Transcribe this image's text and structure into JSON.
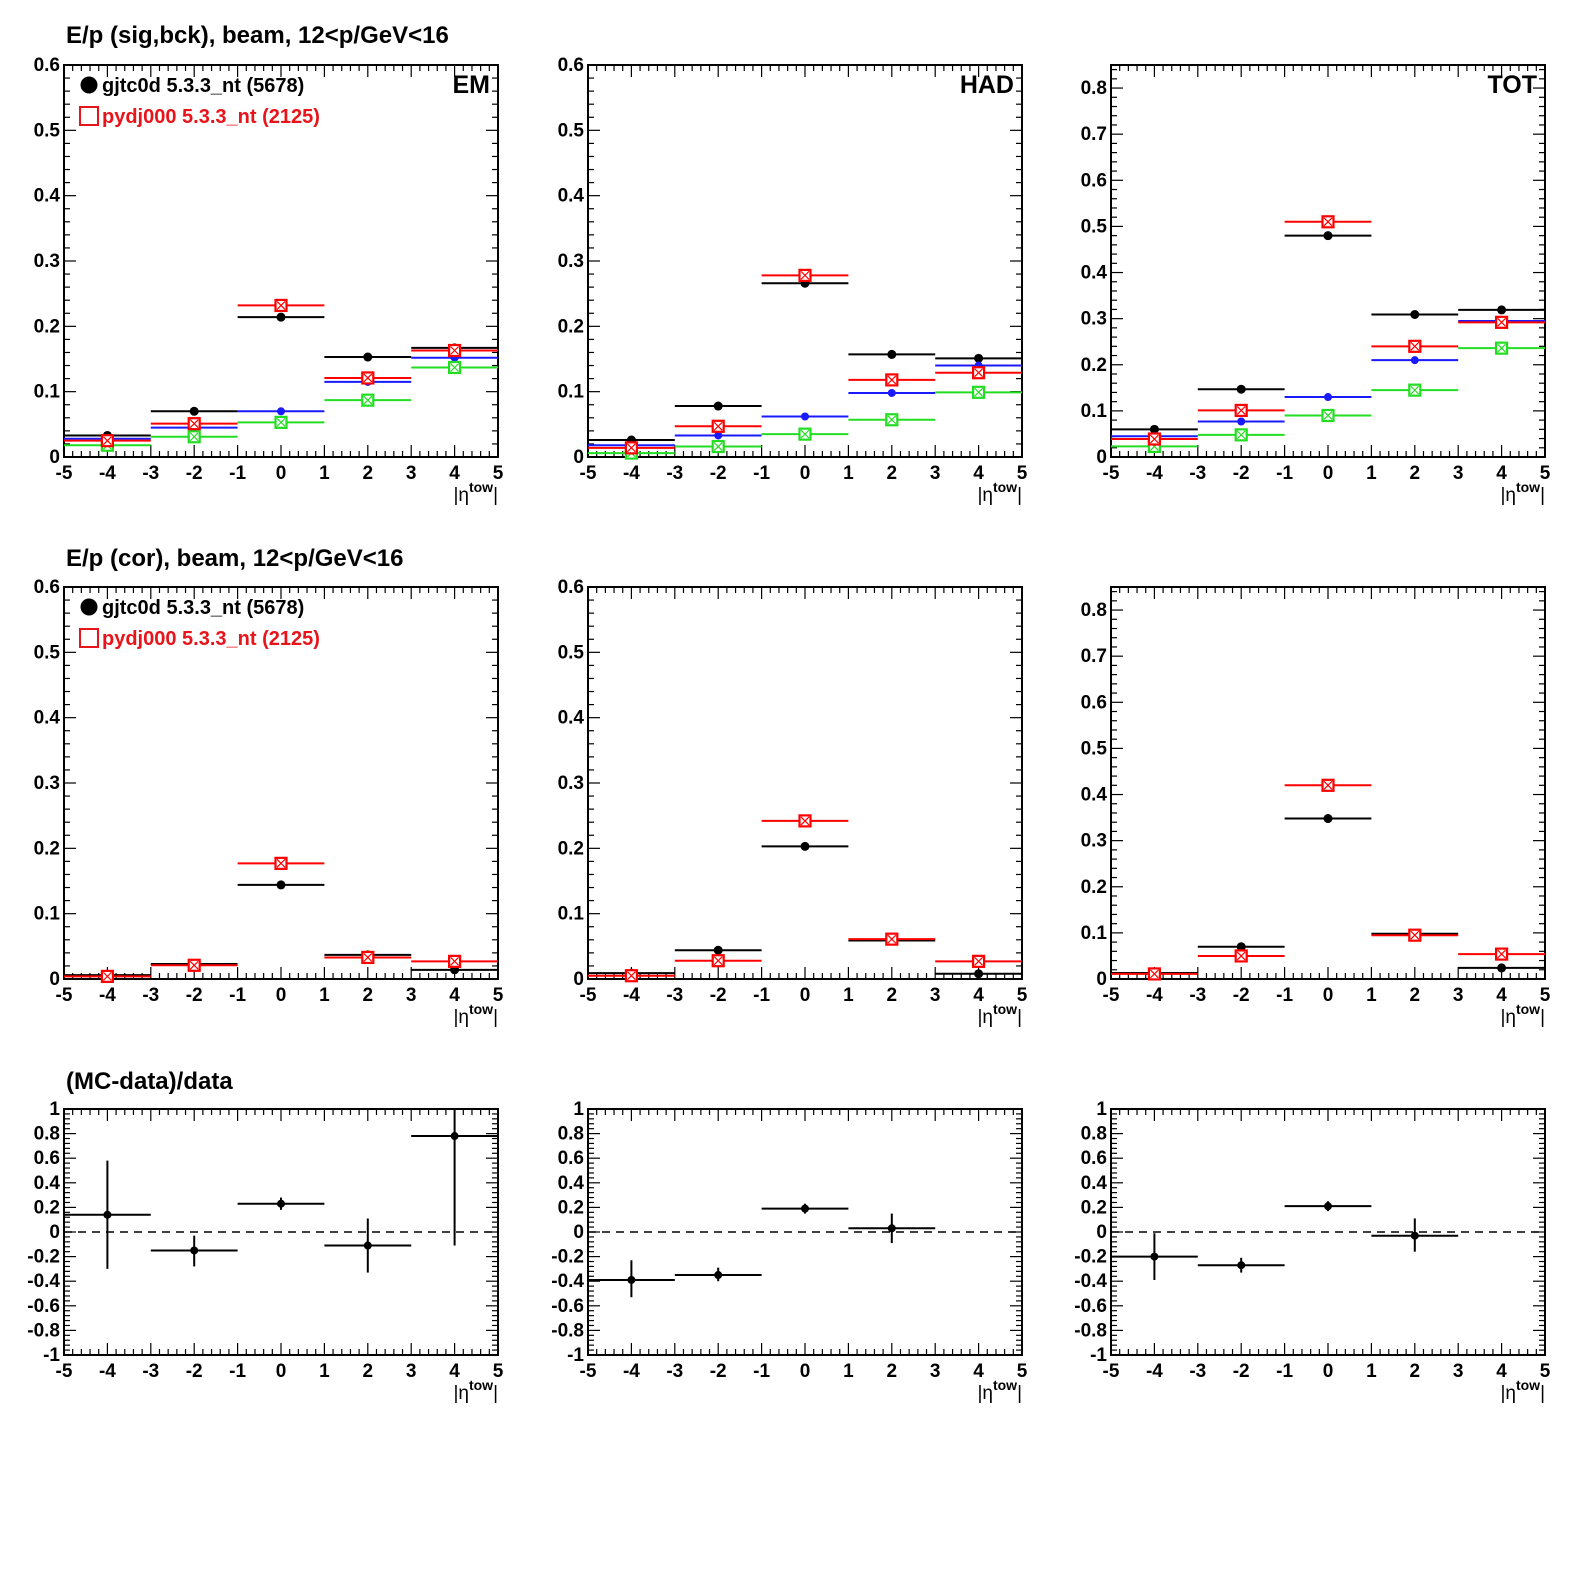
{
  "rows": [
    {
      "title": "E/p (sig,bck), beam, 12<p/GeV<16"
    },
    {
      "title": "E/p (cor), beam, 12<p/GeV<16"
    },
    {
      "title": "(MC-data)/data"
    }
  ],
  "legend": [
    {
      "marker": "filled-circle",
      "color": "#000000",
      "label": "gjtc0d 5.3.3_nt (5678)"
    },
    {
      "marker": "open-square",
      "color": "#e8141a",
      "label": "pydj000 5.3.3_nt (2125)"
    }
  ],
  "colors": {
    "data": "#000000",
    "mc": "#e8141a",
    "blue": "#1a1aff",
    "green": "#22dd22"
  },
  "x_axis": {
    "label_main": "|η",
    "label_sup": "tow",
    "label_end": "|",
    "xlim": [
      -5,
      5
    ],
    "ticks": [
      "-5",
      "-4",
      "-3",
      "-2",
      "-1",
      "0",
      "1",
      "2",
      "3",
      "4",
      "5"
    ]
  },
  "chart_data": [
    {
      "type": "scatter",
      "row": 0,
      "col": 0,
      "panel_label": "EM",
      "ylim": [
        0,
        0.6
      ],
      "yticks": [
        "0",
        "0.1",
        "0.2",
        "0.3",
        "0.4",
        "0.5",
        "0.6"
      ],
      "x": [
        -4,
        -2,
        0,
        2,
        4
      ],
      "series": [
        {
          "name": "gjtc0d 5.3.3_nt (5678)",
          "color": "black",
          "marker": "filled-circle",
          "values": [
            0.033,
            0.07,
            0.214,
            0.153,
            0.167
          ]
        },
        {
          "color": "blue",
          "marker": "filled-circle-small",
          "values": [
            0.028,
            0.045,
            0.07,
            0.115,
            0.152
          ]
        },
        {
          "color": "green",
          "marker": "open-square",
          "values": [
            0.018,
            0.031,
            0.053,
            0.087,
            0.137
          ]
        },
        {
          "name": "pydj000 5.3.3_nt (2125)",
          "color": "red",
          "marker": "open-square",
          "values": [
            0.025,
            0.051,
            0.232,
            0.121,
            0.163
          ]
        }
      ]
    },
    {
      "type": "scatter",
      "row": 0,
      "col": 1,
      "panel_label": "HAD",
      "ylim": [
        0,
        0.6
      ],
      "yticks": [
        "0",
        "0.1",
        "0.2",
        "0.3",
        "0.4",
        "0.5",
        "0.6"
      ],
      "x": [
        -4,
        -2,
        0,
        2,
        4
      ],
      "series": [
        {
          "color": "black",
          "marker": "filled-circle",
          "values": [
            0.026,
            0.078,
            0.266,
            0.157,
            0.151
          ]
        },
        {
          "color": "blue",
          "marker": "filled-circle-small",
          "values": [
            0.018,
            0.033,
            0.062,
            0.098,
            0.14
          ]
        },
        {
          "color": "green",
          "marker": "open-square",
          "values": [
            0.006,
            0.016,
            0.035,
            0.057,
            0.099
          ]
        },
        {
          "color": "red",
          "marker": "open-square",
          "values": [
            0.014,
            0.047,
            0.278,
            0.118,
            0.129
          ]
        }
      ]
    },
    {
      "type": "scatter",
      "row": 0,
      "col": 2,
      "panel_label": "TOT",
      "ylim": [
        0,
        0.85
      ],
      "yticks": [
        "0",
        "0.1",
        "0.2",
        "0.3",
        "0.4",
        "0.5",
        "0.6",
        "0.7",
        "0.8"
      ],
      "x": [
        -4,
        -2,
        0,
        2,
        4
      ],
      "series": [
        {
          "color": "black",
          "marker": "filled-circle",
          "values": [
            0.06,
            0.147,
            0.48,
            0.309,
            0.319
          ]
        },
        {
          "color": "blue",
          "marker": "filled-circle-small",
          "values": [
            0.045,
            0.077,
            0.13,
            0.21,
            0.295
          ]
        },
        {
          "color": "green",
          "marker": "open-square",
          "values": [
            0.023,
            0.048,
            0.09,
            0.145,
            0.236
          ]
        },
        {
          "color": "red",
          "marker": "open-square",
          "values": [
            0.039,
            0.101,
            0.51,
            0.24,
            0.292
          ]
        }
      ]
    },
    {
      "type": "scatter",
      "row": 1,
      "col": 0,
      "panel_label": "",
      "ylim": [
        0,
        0.6
      ],
      "yticks": [
        "0",
        "0.1",
        "0.2",
        "0.3",
        "0.4",
        "0.5",
        "0.6"
      ],
      "x": [
        -4,
        -2,
        0,
        2,
        4
      ],
      "series": [
        {
          "name": "gjtc0d 5.3.3_nt (5678)",
          "color": "black",
          "marker": "filled-circle",
          "values": [
            0.006,
            0.023,
            0.144,
            0.037,
            0.014
          ]
        },
        {
          "name": "pydj000 5.3.3_nt (2125)",
          "color": "red",
          "marker": "open-square",
          "values": [
            0.004,
            0.021,
            0.177,
            0.033,
            0.027
          ]
        }
      ]
    },
    {
      "type": "scatter",
      "row": 1,
      "col": 1,
      "panel_label": "",
      "ylim": [
        0,
        0.6
      ],
      "yticks": [
        "0",
        "0.1",
        "0.2",
        "0.3",
        "0.4",
        "0.5",
        "0.6"
      ],
      "x": [
        -4,
        -2,
        0,
        2,
        4
      ],
      "series": [
        {
          "color": "black",
          "marker": "filled-circle",
          "values": [
            0.009,
            0.044,
            0.203,
            0.059,
            0.008
          ]
        },
        {
          "color": "red",
          "marker": "open-square",
          "values": [
            0.005,
            0.028,
            0.242,
            0.061,
            0.027
          ]
        }
      ]
    },
    {
      "type": "scatter",
      "row": 1,
      "col": 2,
      "panel_label": "",
      "ylim": [
        0,
        0.85
      ],
      "yticks": [
        "0",
        "0.1",
        "0.2",
        "0.3",
        "0.4",
        "0.5",
        "0.6",
        "0.7",
        "0.8"
      ],
      "x": [
        -4,
        -2,
        0,
        2,
        4
      ],
      "series": [
        {
          "color": "black",
          "marker": "filled-circle",
          "values": [
            0.013,
            0.07,
            0.348,
            0.098,
            0.024
          ]
        },
        {
          "color": "red",
          "marker": "open-square",
          "values": [
            0.011,
            0.05,
            0.42,
            0.095,
            0.054
          ]
        }
      ]
    },
    {
      "type": "scatter",
      "row": 2,
      "col": 0,
      "panel_label": "",
      "ylim": [
        -1,
        1
      ],
      "reference_line": 0,
      "yticks": [
        "-1",
        "-0.8",
        "-0.6",
        "-0.4",
        "-0.2",
        "0",
        "0.2",
        "0.4",
        "0.6",
        "0.8",
        "1"
      ],
      "series": [
        {
          "color": "black",
          "marker": "filled-circle-small",
          "points": [
            {
              "x": -4,
              "y": 0.14,
              "ylo": -0.3,
              "yhi": 0.58
            },
            {
              "x": -2,
              "y": -0.15,
              "ylo": -0.28,
              "yhi": -0.03
            },
            {
              "x": 0,
              "y": 0.23,
              "ylo": 0.18,
              "yhi": 0.28
            },
            {
              "x": 2,
              "y": -0.11,
              "ylo": -0.33,
              "yhi": 0.11
            },
            {
              "x": 4,
              "y": 0.78,
              "ylo": -0.11,
              "yhi": 1.0
            }
          ]
        }
      ]
    },
    {
      "type": "scatter",
      "row": 2,
      "col": 1,
      "panel_label": "",
      "ylim": [
        -1,
        1
      ],
      "reference_line": 0,
      "yticks": [
        "-1",
        "-0.8",
        "-0.6",
        "-0.4",
        "-0.2",
        "0",
        "0.2",
        "0.4",
        "0.6",
        "0.8",
        "1"
      ],
      "series": [
        {
          "color": "black",
          "marker": "filled-circle-small",
          "points": [
            {
              "x": -4,
              "y": -0.39,
              "ylo": -0.53,
              "yhi": -0.23
            },
            {
              "x": -2,
              "y": -0.35,
              "ylo": -0.4,
              "yhi": -0.29
            },
            {
              "x": 0,
              "y": 0.19,
              "ylo": 0.15,
              "yhi": 0.23
            },
            {
              "x": 2,
              "y": 0.03,
              "ylo": -0.09,
              "yhi": 0.15
            }
          ]
        }
      ]
    },
    {
      "type": "scatter",
      "row": 2,
      "col": 2,
      "panel_label": "",
      "ylim": [
        -1,
        1
      ],
      "reference_line": 0,
      "yticks": [
        "-1",
        "-0.8",
        "-0.6",
        "-0.4",
        "-0.2",
        "0",
        "0.2",
        "0.4",
        "0.6",
        "0.8",
        "1"
      ],
      "series": [
        {
          "color": "black",
          "marker": "filled-circle-small",
          "points": [
            {
              "x": -4,
              "y": -0.2,
              "ylo": -0.39,
              "yhi": -0.01
            },
            {
              "x": -2,
              "y": -0.27,
              "ylo": -0.33,
              "yhi": -0.21
            },
            {
              "x": 0,
              "y": 0.21,
              "ylo": 0.17,
              "yhi": 0.25
            },
            {
              "x": 2,
              "y": -0.03,
              "ylo": -0.16,
              "yhi": 0.11
            }
          ]
        }
      ]
    }
  ]
}
